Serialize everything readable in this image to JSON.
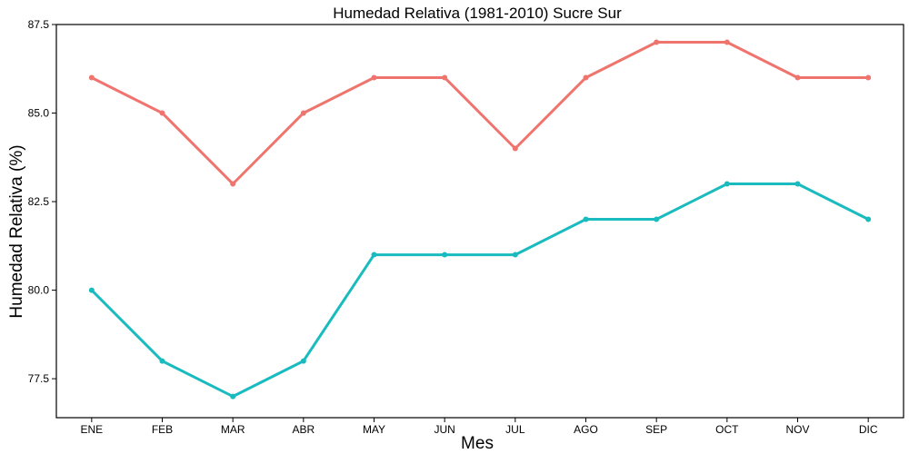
{
  "chart_data": {
    "type": "line",
    "title": "Humedad Relativa (1981-2010)  Sucre Sur",
    "xlabel": "Mes",
    "ylabel": "Humedad Relativa  (%)",
    "categories": [
      "ENE",
      "FEB",
      "MAR",
      "ABR",
      "MAY",
      "JUN",
      "JUL",
      "AGO",
      "SEP",
      "OCT",
      "NOV",
      "DIC"
    ],
    "ylim": [
      76.4,
      87.5
    ],
    "yticks": [
      77.5,
      80.0,
      82.5,
      85.0,
      87.5
    ],
    "ytick_labels": [
      "77.5",
      "80.0",
      "82.5",
      "85.0",
      "87.5"
    ],
    "grid": false,
    "series": [
      {
        "color": "#F0746E",
        "values": [
          86,
          85,
          83,
          85,
          86,
          86,
          84,
          86,
          87,
          87,
          86,
          86
        ]
      },
      {
        "color": "#1ABBBF",
        "values": [
          80,
          78,
          77,
          78,
          81,
          81,
          81,
          82,
          82,
          83,
          83,
          82
        ]
      }
    ]
  }
}
